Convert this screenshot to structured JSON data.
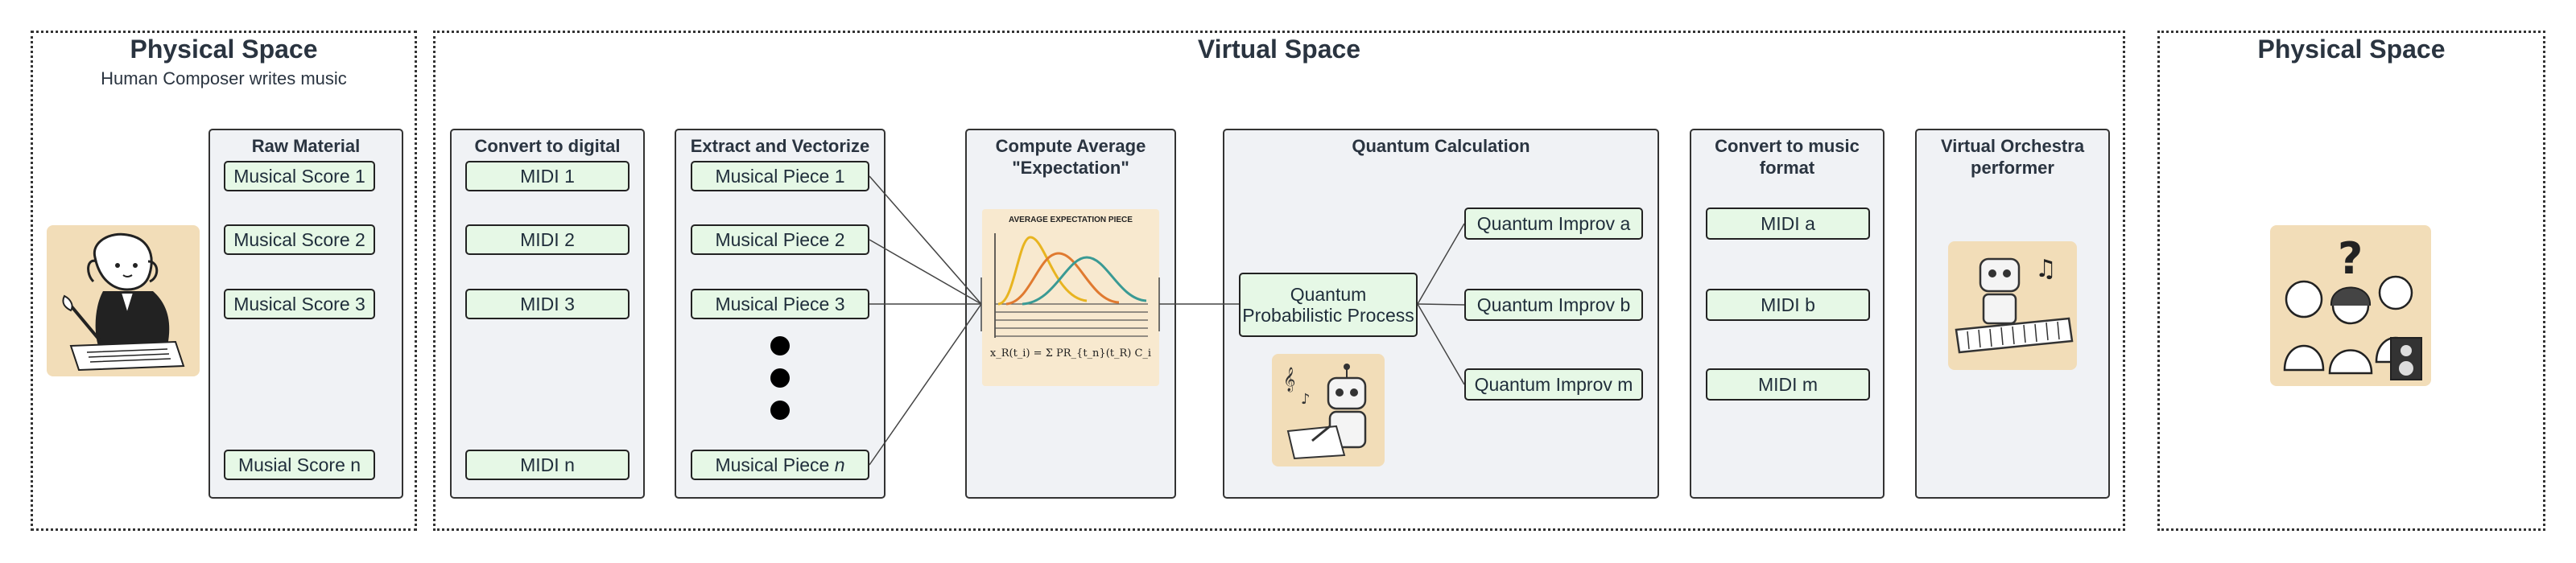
{
  "spaces": {
    "left": {
      "title": "Physical Space",
      "subtitle": "Human Composer writes music"
    },
    "middle": {
      "title": "Virtual Space"
    },
    "right": {
      "title": "Physical Space"
    }
  },
  "panels": {
    "raw": {
      "title": "Raw Material",
      "items": [
        "Musical Score 1",
        "Musical Score 2",
        "Musical Score 3",
        "Musial Score n"
      ]
    },
    "digital": {
      "title": "Convert to digital",
      "items": [
        "MIDI 1",
        "MIDI 2",
        "MIDI 3",
        "MIDI n"
      ]
    },
    "extract": {
      "title": "Extract and Vectorize",
      "items": [
        "Musical Piece 1",
        "Musical Piece 2",
        "Musical Piece 3"
      ],
      "last_prefix": "Musical Piece ",
      "last_var": "n"
    },
    "average": {
      "title": "Compute Average\n\"Expectation\"",
      "figure_title": "AVERAGE EXPECTATION PIECE",
      "formula": "x_R(t_i) = Σ PR_{t_n}(t_R) C_i"
    },
    "quantum": {
      "title": "Quantum Calculation",
      "process": "Quantum\nProbabilistic Process",
      "outputs": [
        "Quantum Improv a",
        "Quantum Improv b",
        "Quantum Improv m"
      ]
    },
    "music_format": {
      "title": "Convert to music\nformat",
      "items": [
        "MIDI a",
        "MIDI b",
        "MIDI m"
      ]
    },
    "orchestra": {
      "title": "Virtual Orchestra\nperformer"
    }
  },
  "colors": {
    "node_fill": "#e6f8e6",
    "panel_fill": "#f0f2f5",
    "curve_yellow": "#e8b420",
    "curve_orange": "#e07a30",
    "curve_teal": "#3a9a94",
    "picture_bg": "#f2ddb8"
  },
  "icons": {
    "composer": "composer-illustration",
    "robot_composer": "robot-composer-illustration",
    "robot_keyboard": "robot-keyboard-illustration",
    "audience": "audience-illustration"
  }
}
